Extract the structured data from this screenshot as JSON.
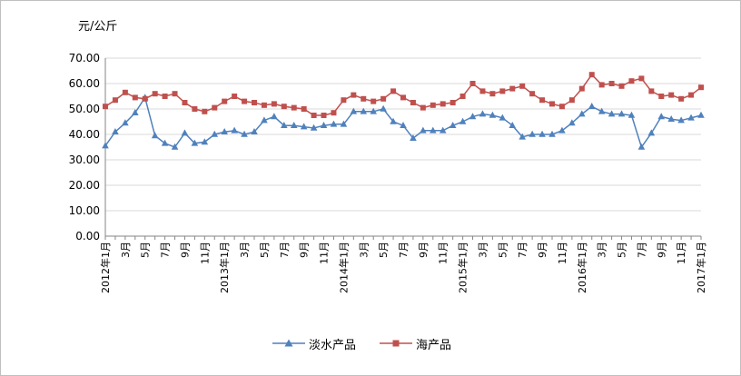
{
  "chart_data": {
    "type": "line",
    "unit_label": "元/公斤",
    "ylim": [
      0,
      70
    ],
    "yticks": [
      "0.00",
      "10.00",
      "20.00",
      "30.00",
      "40.00",
      "50.00",
      "60.00",
      "70.00"
    ],
    "grid": true,
    "legend_position": "bottom",
    "x_labels": [
      "2012年1月",
      "3月",
      "5月",
      "7月",
      "9月",
      "11月",
      "2013年1月",
      "3月",
      "5月",
      "7月",
      "9月",
      "11月",
      "2014年1月",
      "3月",
      "5月",
      "7月",
      "9月",
      "11月",
      "2015年1月",
      "3月",
      "5月",
      "7月",
      "9月",
      "11月",
      "2016年1月",
      "3月",
      "5月",
      "7月",
      "9月",
      "11月",
      "2017年1月"
    ],
    "series": [
      {
        "name": "淡水产品",
        "color": "#4f81bd",
        "marker": "triangle",
        "values": [
          35.5,
          41.0,
          44.5,
          48.5,
          54.5,
          39.5,
          36.5,
          35.0,
          40.5,
          36.5,
          37.0,
          40.0,
          41.0,
          41.5,
          40.0,
          41.0,
          45.5,
          47.0,
          43.5,
          43.5,
          43.0,
          42.5,
          43.5,
          44.0,
          44.0,
          49.0,
          49.0,
          49.0,
          50.0,
          45.0,
          43.5,
          38.5,
          41.5,
          41.5,
          41.5,
          43.5,
          45.0,
          47.0,
          48.0,
          47.5,
          46.5,
          43.5,
          39.0,
          40.0,
          40.0,
          40.0,
          41.5,
          44.5,
          48.0,
          51.0,
          49.0,
          48.0,
          48.0,
          47.5,
          35.0,
          40.5,
          47.0,
          46.0,
          45.5,
          46.5,
          47.5
        ]
      },
      {
        "name": "海产品",
        "color": "#c0504d",
        "marker": "square",
        "values": [
          51.0,
          53.5,
          56.5,
          54.5,
          54.0,
          56.0,
          55.0,
          56.0,
          52.5,
          50.0,
          49.0,
          50.5,
          53.0,
          55.0,
          53.0,
          52.5,
          51.5,
          52.0,
          51.0,
          50.5,
          50.0,
          47.5,
          47.5,
          48.5,
          53.5,
          55.5,
          54.0,
          53.0,
          54.0,
          57.0,
          54.5,
          52.5,
          50.5,
          51.5,
          52.0,
          52.5,
          55.0,
          60.0,
          57.0,
          56.0,
          57.0,
          58.0,
          59.0,
          56.0,
          53.5,
          52.0,
          51.0,
          53.5,
          58.0,
          63.5,
          59.5,
          60.0,
          59.0,
          61.0,
          62.0,
          57.0,
          55.0,
          55.5,
          54.0,
          55.5,
          58.5
        ]
      }
    ]
  }
}
